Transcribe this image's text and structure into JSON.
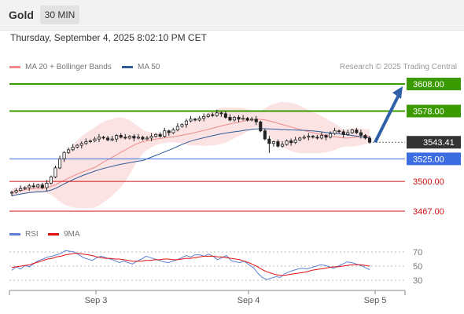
{
  "header": {
    "instrument": "Gold",
    "timeframe": "30 MIN",
    "timestamp": "Thursday, September 4, 2025 8:02:10 PM CET"
  },
  "legend": {
    "ma_bollinger": {
      "label": "MA 20 + Bollinger Bands",
      "color": "#f08a8a"
    },
    "ma50": {
      "label": "MA 50",
      "color": "#2f5b96"
    },
    "credit": "Research © 2025 Trading Central"
  },
  "rsi_legend": {
    "rsi": {
      "label": "RSI",
      "color": "#5b7fd4"
    },
    "ma9": {
      "label": "9MA",
      "color": "#e01010"
    }
  },
  "chart_data": {
    "type": "candlestick",
    "x_ticks": [
      "Sep 3",
      "Sep 4",
      "Sep 5"
    ],
    "current_price": "3543.41",
    "levels": [
      {
        "label": "3608.00",
        "value": 3608.0,
        "kind": "target",
        "color": "#3a9a00"
      },
      {
        "label": "3578.00",
        "value": 3578.0,
        "kind": "target",
        "color": "#3a9a00"
      },
      {
        "label": "3525.00",
        "value": 3525.0,
        "kind": "pivot",
        "color": "#3c6de0"
      },
      {
        "label": "3500.00",
        "value": 3500.0,
        "kind": "support",
        "color": "#d01010"
      },
      {
        "label": "3467.00",
        "value": 3467.0,
        "kind": "support",
        "color": "#d01010"
      }
    ],
    "forecast_arrow": {
      "from": 3543.41,
      "to": 3608.0,
      "direction": "up"
    },
    "closes": [
      3488,
      3490,
      3492,
      3493,
      3495,
      3494,
      3496,
      3493,
      3498,
      3505,
      3515,
      3525,
      3532,
      3535,
      3538,
      3540,
      3542,
      3544,
      3545,
      3547,
      3549,
      3548,
      3546,
      3547,
      3551,
      3549,
      3548,
      3550,
      3548,
      3549,
      3547,
      3548,
      3550,
      3552,
      3550,
      3556,
      3554,
      3557,
      3561,
      3563,
      3567,
      3569,
      3568,
      3570,
      3572,
      3574,
      3573,
      3576,
      3575,
      3571,
      3568,
      3571,
      3569,
      3570,
      3568,
      3569,
      3566,
      3556,
      3547,
      3542,
      3544,
      3539,
      3541,
      3545,
      3543,
      3546,
      3548,
      3549,
      3550,
      3549,
      3548,
      3551,
      3549,
      3553,
      3556,
      3555,
      3552,
      3554,
      3557,
      3554,
      3551,
      3548,
      3543.41
    ],
    "rsi": {
      "axis_ticks": [
        70,
        50,
        30
      ],
      "values": [
        44,
        49,
        46,
        51,
        49,
        54,
        58,
        60,
        63,
        64,
        66,
        68,
        72,
        71,
        70,
        66,
        62,
        60,
        58,
        62,
        64,
        62,
        60,
        58,
        55,
        57,
        55,
        53,
        57,
        60,
        64,
        62,
        60,
        58,
        56,
        55,
        57,
        59,
        62,
        65,
        63,
        66,
        66,
        64,
        67,
        64,
        59,
        62,
        65,
        58,
        56,
        55,
        57,
        52,
        48,
        40,
        34,
        31,
        33,
        35,
        34,
        39,
        42,
        44,
        46,
        47,
        46,
        48,
        50,
        52,
        51,
        49,
        47,
        50,
        53,
        56,
        55,
        53,
        51,
        48,
        45
      ],
      "ma9": [
        48,
        49,
        50,
        51,
        52,
        54,
        56,
        58,
        60,
        61,
        63,
        64,
        66,
        67,
        68,
        68,
        67,
        66,
        65,
        63,
        62,
        61,
        61,
        60,
        60,
        59,
        58,
        57,
        57,
        57,
        58,
        58,
        59,
        59,
        60,
        60,
        59,
        59,
        60,
        61,
        61,
        62,
        63,
        64,
        64,
        64,
        63,
        63,
        62,
        61,
        60,
        59,
        57,
        55,
        52,
        49,
        45,
        42,
        40,
        38,
        37,
        37,
        38,
        39,
        40,
        41,
        42,
        44,
        45,
        46,
        47,
        48,
        49,
        49,
        50,
        51,
        52,
        52,
        52,
        51,
        50
      ]
    }
  }
}
